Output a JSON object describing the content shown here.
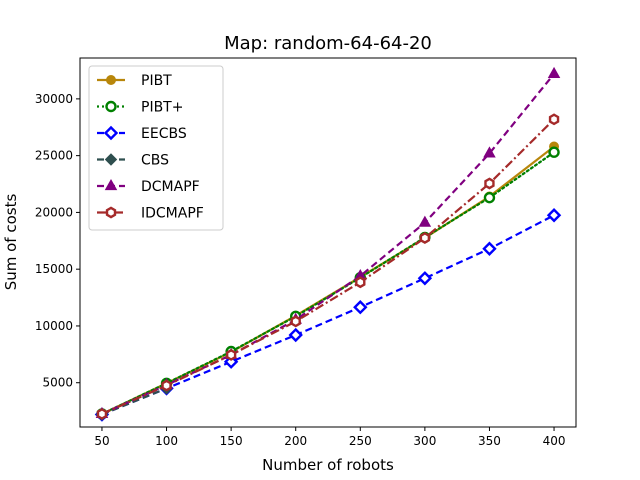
{
  "chart_data": {
    "type": "line",
    "title": "Map: random-64-64-20",
    "xlabel": "Number of robots",
    "ylabel": "Sum of costs",
    "x": [
      50,
      100,
      150,
      200,
      250,
      300,
      350,
      400
    ],
    "x_ticks": [
      "50",
      "100",
      "150",
      "200",
      "250",
      "300",
      "350",
      "400"
    ],
    "xlim": [
      33,
      417
    ],
    "ylim": [
      1100,
      33600
    ],
    "y_ticks": [
      5000,
      10000,
      15000,
      20000,
      25000,
      30000
    ],
    "y_tick_labels": [
      "5000",
      "10000",
      "15000",
      "20000",
      "25000",
      "30000"
    ],
    "grid": false,
    "legend_position": "top-left",
    "series": [
      {
        "name": "PIBT",
        "color": "#b8860b",
        "dash": "solid",
        "marker": "circle-filled",
        "values": [
          2250,
          4950,
          7700,
          10900,
          14300,
          17750,
          21400,
          25800
        ]
      },
      {
        "name": "PIBT+",
        "color": "#008000",
        "dash": "dotted",
        "marker": "circle-open",
        "values": [
          2250,
          4950,
          7750,
          10850,
          14250,
          17800,
          21300,
          25300
        ]
      },
      {
        "name": "EECBS",
        "color": "#0000ff",
        "dash": "dashed",
        "marker": "diamond-open",
        "values": [
          2200,
          4500,
          6850,
          9200,
          11650,
          14200,
          16800,
          19750
        ]
      },
      {
        "name": "CBS",
        "color": "#2f4f4f",
        "dash": "dashed",
        "marker": "diamond-filled",
        "values": [
          2200,
          4500,
          null,
          null,
          null,
          null,
          null,
          null
        ]
      },
      {
        "name": "DCMAPF",
        "color": "#800080",
        "dash": "dashed",
        "marker": "triangle-filled",
        "values": [
          2250,
          4800,
          7450,
          10550,
          14400,
          19100,
          25200,
          32200
        ]
      },
      {
        "name": "IDCMAPF",
        "color": "#a52a2a",
        "dash": "dashdot",
        "marker": "hexagon-open",
        "values": [
          2250,
          4750,
          7450,
          10400,
          13850,
          17750,
          22550,
          28200
        ]
      }
    ]
  }
}
